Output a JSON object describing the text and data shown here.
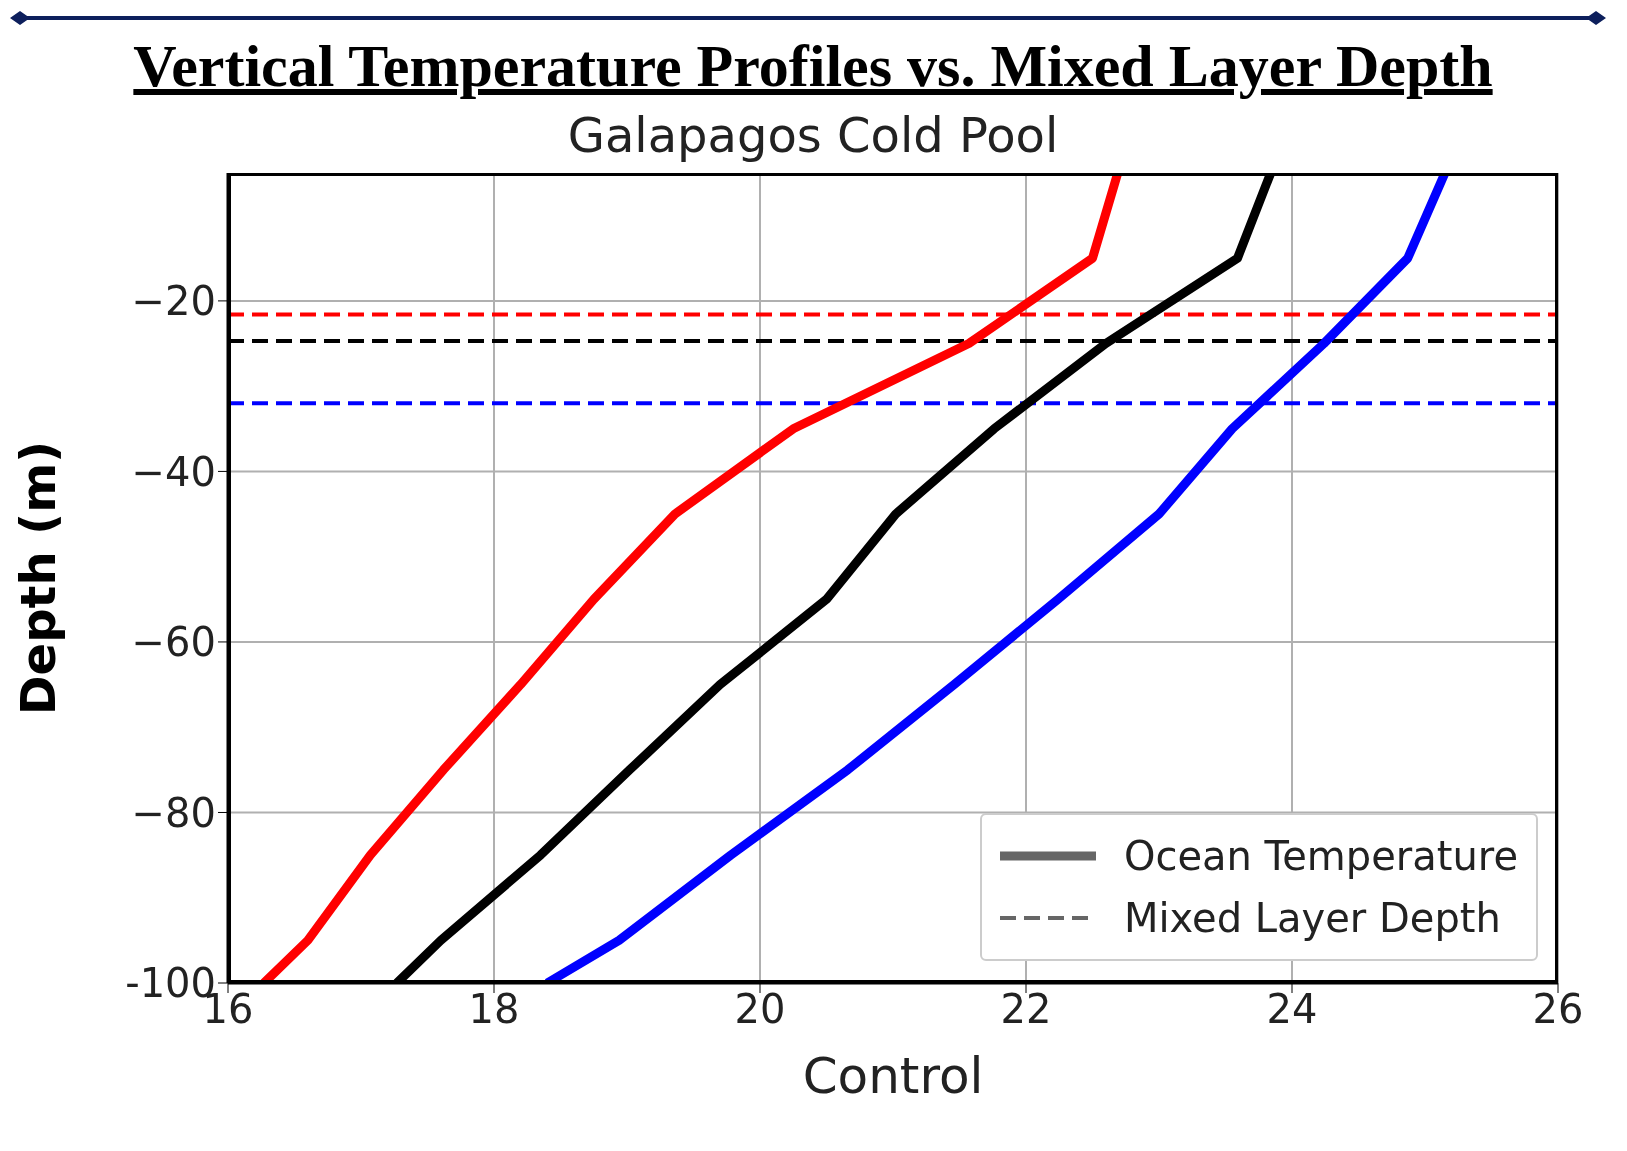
{
  "chart_data": {
    "type": "line",
    "title": "Vertical Temperature Profiles vs. Mixed Layer Depth",
    "subtitle": "Galapagos Cold Pool",
    "xlabel": "Control",
    "ylabel": "Depth (m)",
    "xlim": [
      16,
      26
    ],
    "xticks": [
      16,
      18,
      20,
      22,
      24,
      26
    ],
    "ylim": [
      -100,
      -5
    ],
    "yticks": [
      {
        "value": -100,
        "label": "-100"
      },
      {
        "value": -80,
        "label": "−80"
      },
      {
        "value": -60,
        "label": "−60"
      },
      {
        "value": -40,
        "label": "−40"
      },
      {
        "value": -20,
        "label": "−20"
      }
    ],
    "grid": true,
    "line_style": "solid",
    "annotations": [
      "Ocean Temperature",
      "Mixed Layer Depth"
    ],
    "series": [
      {
        "color": "#ff0000",
        "x": [
          22.69,
          22.5,
          21.57,
          20.25,
          19.36,
          18.75,
          18.2,
          17.62,
          17.07,
          16.6,
          16.27
        ],
        "values": [
          -5,
          -15,
          -25,
          -35,
          -45,
          -55,
          -65,
          -75,
          -85,
          -95,
          -100
        ]
      },
      {
        "color": "#000000",
        "x": [
          23.84,
          23.59,
          22.6,
          21.76,
          21.02,
          20.5,
          19.7,
          19.02,
          18.35,
          17.6,
          17.27
        ],
        "values": [
          -5,
          -15,
          -25,
          -35,
          -45,
          -55,
          -65,
          -75,
          -85,
          -95,
          -100
        ]
      },
      {
        "color": "#0000ff",
        "x": [
          25.15,
          24.87,
          24.24,
          23.55,
          23.0,
          22.24,
          21.46,
          20.66,
          19.78,
          18.94,
          18.4
        ],
        "values": [
          -5,
          -15,
          -25,
          -35,
          -45,
          -55,
          -65,
          -75,
          -85,
          -95,
          -100
        ]
      }
    ],
    "ref_lines": [
      {
        "axis": "y",
        "value": -21.6,
        "color": "#ff0000",
        "line_style": "dashed"
      },
      {
        "axis": "y",
        "value": -24.7,
        "color": "#000000",
        "line_style": "dashed"
      },
      {
        "axis": "y",
        "value": -32,
        "color": "#0000ff",
        "line_style": "dashed"
      }
    ]
  }
}
